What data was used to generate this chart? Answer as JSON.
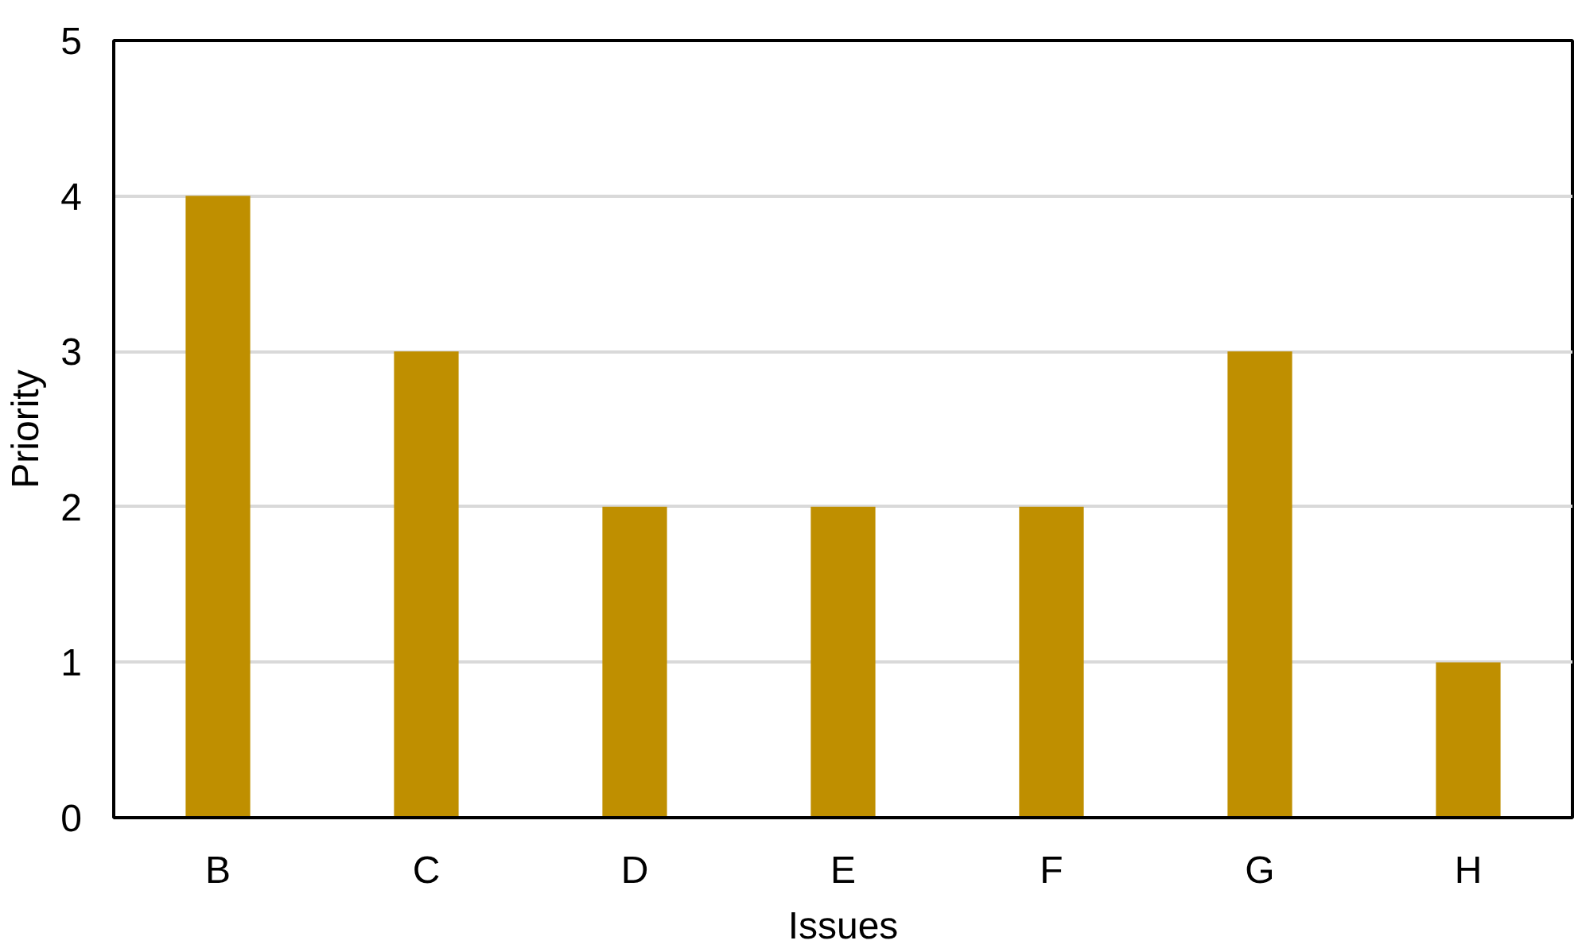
{
  "chart_data": {
    "type": "bar",
    "xlabel": "Issues",
    "ylabel": "Priority",
    "categories": [
      "B",
      "C",
      "D",
      "E",
      "F",
      "G",
      "H"
    ],
    "values": [
      4,
      3,
      2,
      2,
      2,
      3,
      1
    ],
    "color": "#bf8f00",
    "ylim": [
      0,
      5
    ],
    "yticks": [
      0,
      1,
      2,
      3,
      4,
      5
    ],
    "grid": "y"
  }
}
